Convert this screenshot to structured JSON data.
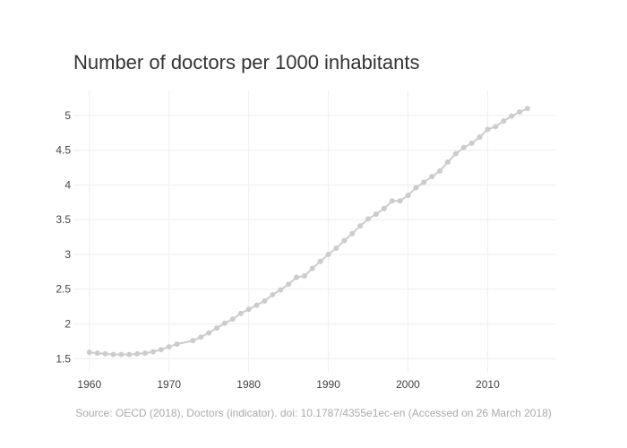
{
  "chart_data": {
    "type": "line",
    "title": "Number of doctors per 1000 inhabitants",
    "xlabel": "",
    "ylabel": "",
    "xlim": [
      1958,
      2018.5
    ],
    "ylim": [
      1.31,
      5.36
    ],
    "x_ticks": [
      "1960",
      "1970",
      "1980",
      "1990",
      "2000",
      "2010"
    ],
    "y_ticks": [
      "1.5",
      "2",
      "2.5",
      "3",
      "3.5",
      "4",
      "4.5",
      "5"
    ],
    "grid": true,
    "legend": "none",
    "series": [
      {
        "color": "#cccccc",
        "x": [
          1960,
          1961,
          1962,
          1963,
          1964,
          1965,
          1966,
          1967,
          1968,
          1969,
          1970,
          1971,
          1973,
          1974,
          1975,
          1976,
          1977,
          1978,
          1979,
          1980,
          1981,
          1982,
          1983,
          1984,
          1985,
          1986,
          1987,
          1988,
          1989,
          1990,
          1991,
          1992,
          1993,
          1994,
          1995,
          1996,
          1997,
          1998,
          1999,
          2000,
          2001,
          2002,
          2003,
          2004,
          2005,
          2006,
          2007,
          2008,
          2009,
          2010,
          2011,
          2012,
          2013,
          2014,
          2015
        ],
        "y": [
          1.59,
          1.58,
          1.57,
          1.56,
          1.56,
          1.56,
          1.57,
          1.58,
          1.6,
          1.63,
          1.67,
          1.71,
          1.76,
          1.81,
          1.87,
          1.94,
          2.01,
          2.07,
          2.15,
          2.21,
          2.27,
          2.33,
          2.42,
          2.49,
          2.57,
          2.67,
          2.69,
          2.8,
          2.9,
          3.0,
          3.09,
          3.2,
          3.3,
          3.41,
          3.51,
          3.58,
          3.66,
          3.77,
          3.77,
          3.85,
          3.96,
          4.04,
          4.12,
          4.2,
          4.33,
          4.45,
          4.54,
          4.6,
          4.69,
          4.8,
          4.84,
          4.92,
          4.99,
          5.05,
          5.1
        ]
      }
    ]
  },
  "source_note": "Source: OECD (2018), Doctors (indicator). doi: 10.1787/4355e1ec-en (Accessed on 26 March 2018)"
}
